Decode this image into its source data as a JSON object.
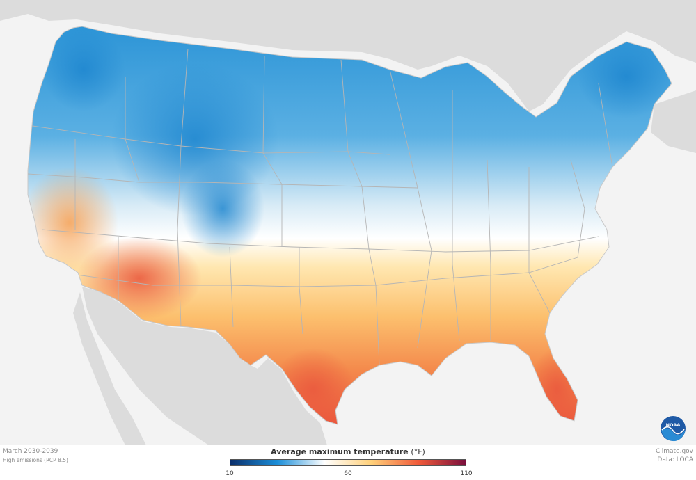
{
  "legend": {
    "title": "Average maximum temperature",
    "unit": "(°F)",
    "ticks": [
      "10",
      "60",
      "110"
    ],
    "min": 10,
    "mid": 60,
    "max": 110,
    "colors": [
      "#0b2f6b",
      "#1b8ed8",
      "#ffffff",
      "#ffd07a",
      "#f05a3a",
      "#7a0f3d"
    ]
  },
  "caption": {
    "period": "March 2030-2039",
    "scenario": "High emissions (RCP 8.5)"
  },
  "credits": {
    "source": "Climate.gov",
    "data": "Data: LOCA"
  },
  "logo": {
    "text": "NOAA"
  },
  "map_colors": {
    "ocean": "#f3f3f3",
    "land_outside": "#dcdcdc",
    "state_lines": "#bdbdbd",
    "cold": "#2a93d6",
    "neutral": "#ffffff",
    "warm": "#f6a45a",
    "hot": "#ea5a3e"
  }
}
